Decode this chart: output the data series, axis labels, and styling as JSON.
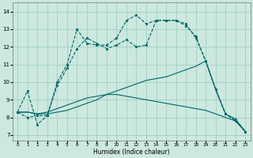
{
  "xlabel": "Humidex (Indice chaleur)",
  "bg_color": "#cce8df",
  "line_color": "#006666",
  "grid_color": "#99ccbb",
  "x_ticks": [
    0,
    1,
    2,
    3,
    4,
    5,
    6,
    7,
    8,
    9,
    10,
    11,
    12,
    13,
    14,
    15,
    16,
    17,
    18,
    19,
    20,
    21,
    22,
    23
  ],
  "y_ticks": [
    7,
    8,
    9,
    10,
    11,
    12,
    13,
    14
  ],
  "ylim": [
    6.7,
    14.5
  ],
  "xlim": [
    -0.5,
    23.5
  ],
  "curve1_x": [
    0,
    1,
    2,
    3,
    4,
    5,
    6,
    7,
    8,
    9,
    10,
    11,
    12,
    13,
    14,
    15,
    16,
    17,
    18,
    19,
    20,
    21,
    22,
    23
  ],
  "curve1_y": [
    8.3,
    9.5,
    7.6,
    8.1,
    10.0,
    11.0,
    13.0,
    12.2,
    12.1,
    12.1,
    12.5,
    13.5,
    13.8,
    13.3,
    13.5,
    13.5,
    13.5,
    13.2,
    12.6,
    11.2,
    9.6,
    8.2,
    7.8,
    7.2
  ],
  "curve2_x": [
    0,
    1,
    2,
    3,
    4,
    5,
    6,
    7,
    8,
    9,
    10,
    11,
    12,
    13,
    14,
    15,
    16,
    17,
    18,
    19,
    20,
    21,
    22,
    23
  ],
  "curve2_y": [
    8.3,
    8.0,
    8.1,
    8.1,
    9.8,
    10.8,
    11.9,
    12.5,
    12.2,
    11.9,
    12.1,
    12.4,
    12.0,
    12.1,
    13.5,
    13.5,
    13.5,
    13.3,
    12.5,
    11.2,
    9.6,
    8.2,
    7.9,
    7.2
  ],
  "line_asc_x": [
    0,
    1,
    2,
    3,
    4,
    5,
    6,
    7,
    8,
    9,
    10,
    11,
    12,
    13,
    14,
    15,
    16,
    17,
    18,
    19,
    20,
    21,
    22,
    23
  ],
  "line_asc_y": [
    8.3,
    8.3,
    8.2,
    8.2,
    8.3,
    8.4,
    8.6,
    8.8,
    9.0,
    9.3,
    9.5,
    9.7,
    9.9,
    10.1,
    10.2,
    10.3,
    10.5,
    10.7,
    10.9,
    11.2,
    9.6,
    8.2,
    7.9,
    7.2
  ],
  "line_desc_x": [
    0,
    1,
    2,
    3,
    4,
    5,
    6,
    7,
    8,
    9,
    10,
    11,
    12,
    13,
    14,
    15,
    16,
    17,
    18,
    19,
    20,
    21,
    22,
    23
  ],
  "line_desc_y": [
    8.3,
    8.3,
    8.2,
    8.3,
    8.5,
    8.7,
    8.9,
    9.1,
    9.2,
    9.3,
    9.3,
    9.2,
    9.1,
    9.0,
    8.9,
    8.8,
    8.7,
    8.6,
    8.5,
    8.4,
    8.2,
    8.0,
    7.8,
    7.2
  ]
}
